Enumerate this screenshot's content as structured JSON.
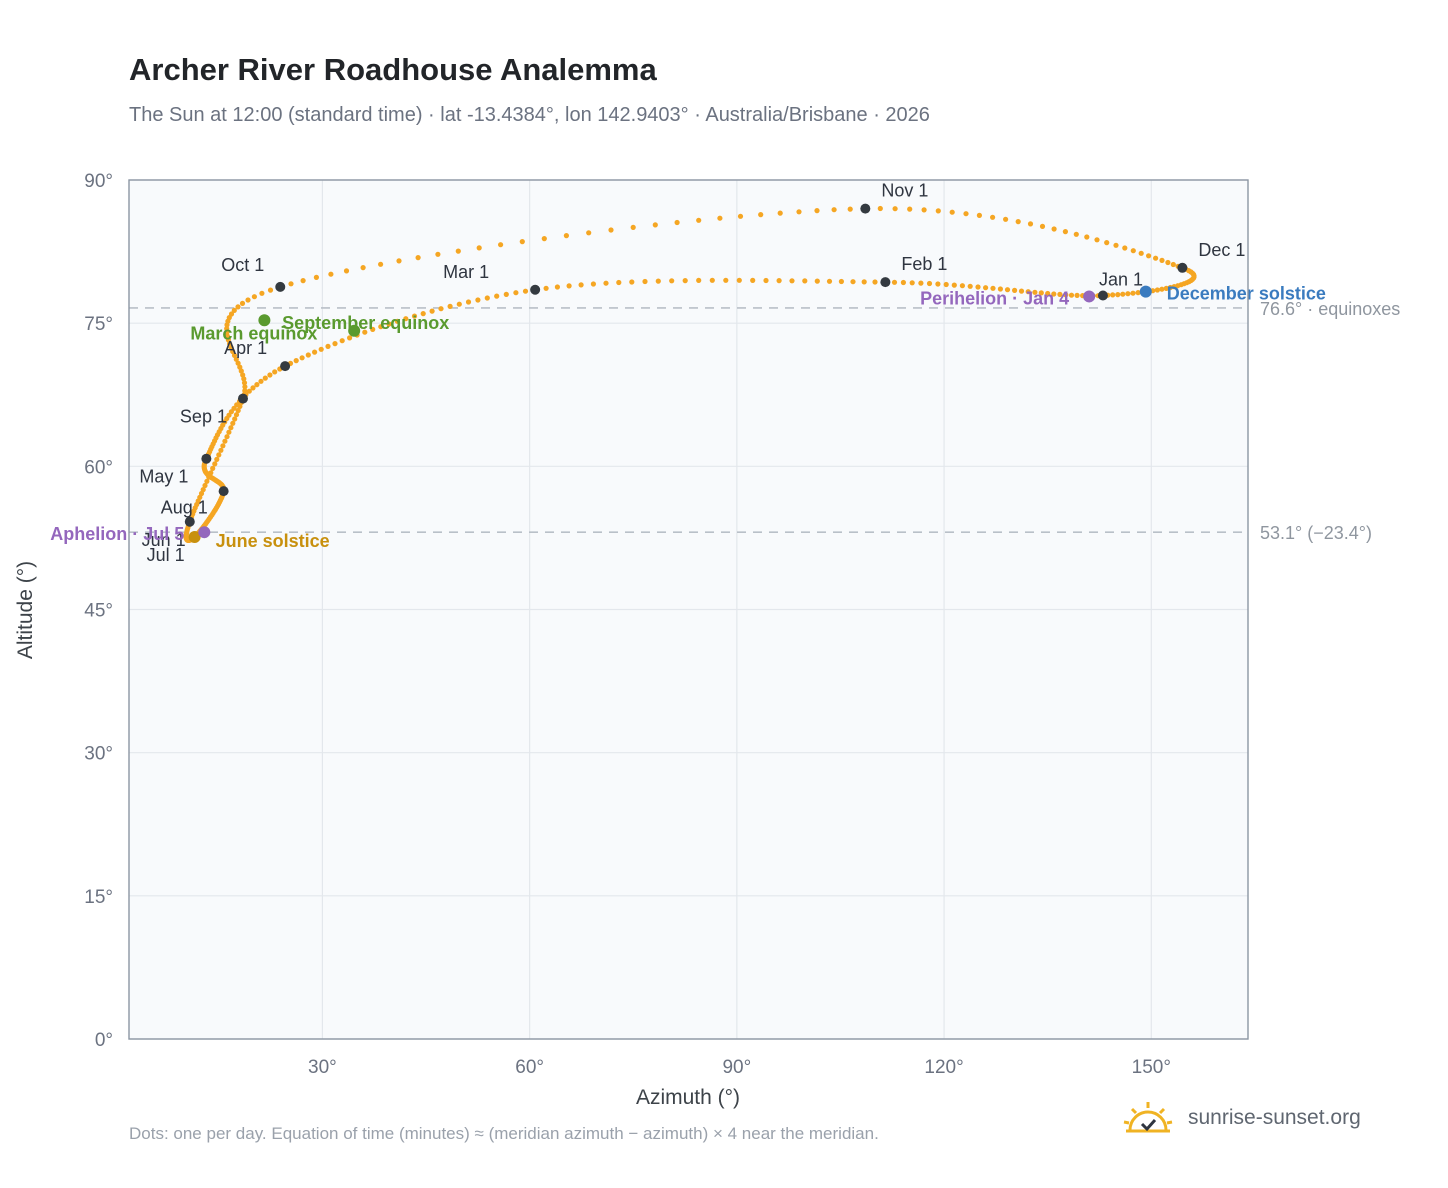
{
  "header": {
    "title": "Archer River Roadhouse Analemma",
    "subtitle": "The Sun at 12:00 (standard time) · lat -13.4384°, lon 142.9403° · Australia/Brisbane · 2026"
  },
  "footer": {
    "note": "Dots: one per day. Equation of time (minutes) ≈ (meridian azimuth − azimuth) × 4 near the meridian.",
    "brand": "sunrise-sunset.org"
  },
  "colors": {
    "path": "#f5a623",
    "month_marker": "#343a40",
    "equinox": "#5a9a2f",
    "june_solstice": "#c8900e",
    "december_solstice": "#3a7bbf",
    "aphelion_perihelion": "#9467bd",
    "plot_bg": "#f8fafc",
    "grid": "#e3e7ec",
    "axis_text": "#6b7280"
  },
  "chart_data": {
    "type": "scatter",
    "xlabel": "Azimuth (°)",
    "ylabel": "Altitude (°)",
    "xlim": [
      2,
      164
    ],
    "ylim": [
      0,
      90
    ],
    "x_ticks": [
      30,
      60,
      90,
      120,
      150
    ],
    "x_tick_labels": [
      "30°",
      "60°",
      "90°",
      "120°",
      "150°"
    ],
    "y_ticks": [
      0,
      15,
      30,
      45,
      60,
      75,
      90
    ],
    "y_tick_labels": [
      "0°",
      "15°",
      "30°",
      "45°",
      "60°",
      "75°",
      "90°"
    ],
    "grid": true,
    "reference_lines": [
      {
        "y": 76.6,
        "label": "76.6° · equinoxes"
      },
      {
        "y": 53.1,
        "label": "53.1° (−23.4°)"
      }
    ],
    "month_markers": [
      {
        "label": "Jan 1",
        "x": 143.0,
        "y": 77.9
      },
      {
        "label": "Feb 1",
        "x": 111.5,
        "y": 79.3
      },
      {
        "label": "Mar 1",
        "x": 60.8,
        "y": 78.5
      },
      {
        "label": "Apr 1",
        "x": 24.6,
        "y": 70.5
      },
      {
        "label": "May 1",
        "x": 13.2,
        "y": 60.8
      },
      {
        "label": "Jun 1",
        "x": 15.7,
        "y": 57.4
      },
      {
        "label": "Jul 1",
        "x": 11.5,
        "y": 52.6
      },
      {
        "label": "Aug 1",
        "x": 10.8,
        "y": 54.2
      },
      {
        "label": "Sep 1",
        "x": 18.5,
        "y": 67.1
      },
      {
        "label": "Oct 1",
        "x": 23.9,
        "y": 78.8
      },
      {
        "label": "Nov 1",
        "x": 108.6,
        "y": 87.0
      },
      {
        "label": "Dec 1",
        "x": 154.5,
        "y": 80.8
      }
    ],
    "events": [
      {
        "label": "March equinox",
        "x": 21.6,
        "y": 75.3,
        "kind": "equinox"
      },
      {
        "label": "September equinox",
        "x": 34.6,
        "y": 74.2,
        "kind": "equinox"
      },
      {
        "label": "June solstice",
        "x": 11.5,
        "y": 52.6,
        "kind": "june_solstice"
      },
      {
        "label": "December solstice",
        "x": 149.2,
        "y": 78.3,
        "kind": "december_solstice"
      },
      {
        "label": "Aphelion · Jul 5",
        "x": 12.9,
        "y": 53.1,
        "kind": "aphelion_perihelion"
      },
      {
        "label": "Perihelion · Jan 4",
        "x": 141.0,
        "y": 77.8,
        "kind": "aphelion_perihelion"
      }
    ]
  }
}
